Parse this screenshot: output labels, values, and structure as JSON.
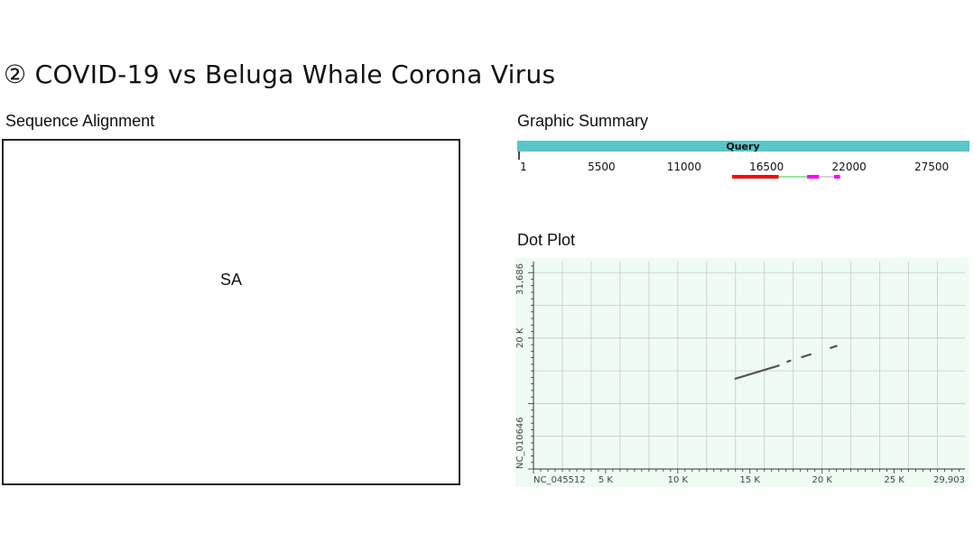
{
  "page": {
    "title": "② COVID-19 vs Beluga Whale Corona Virus"
  },
  "sequence_alignment": {
    "heading": "Sequence Alignment",
    "placeholder": "SA"
  },
  "graphic_summary": {
    "heading": "Graphic Summary",
    "bar_label": "Query",
    "bar_color": "#59c6c6",
    "ticks": [
      {
        "label": "1",
        "value": 1
      },
      {
        "label": "5500",
        "value": 5500
      },
      {
        "label": "11000",
        "value": 11000
      },
      {
        "label": "16500",
        "value": 16500
      },
      {
        "label": "22000",
        "value": 22000
      },
      {
        "label": "27500",
        "value": 27500
      }
    ],
    "axis_max": 29903,
    "hits": [
      {
        "start": 14200,
        "end": 17300,
        "color": "#ff0000",
        "weight": "thick"
      },
      {
        "start": 17300,
        "end": 18600,
        "color": "#2ecc40",
        "weight": "thin"
      },
      {
        "start": 18600,
        "end": 19200,
        "color": "#2ecc40",
        "weight": "thin"
      },
      {
        "start": 19200,
        "end": 20000,
        "color": "#ff00ff",
        "weight": "medium"
      },
      {
        "start": 20000,
        "end": 21000,
        "color": "#aaaaaa",
        "weight": "thin"
      },
      {
        "start": 21000,
        "end": 21400,
        "color": "#ff00ff",
        "weight": "medium"
      }
    ]
  },
  "dot_plot": {
    "heading": "Dot Plot",
    "x_label": "NC_045512",
    "y_label": "NC_010646",
    "x_ticks": [
      "5 K",
      "10 K",
      "15 K",
      "20 K",
      "25 K",
      "29,903"
    ],
    "y_ticks": [
      "20 K",
      "31,686"
    ],
    "x_max": 29903,
    "y_max": 31686,
    "segments": [
      {
        "x1": 14000,
        "y1": 13800,
        "x2": 17000,
        "y2": 15800
      },
      {
        "x1": 17600,
        "y1": 16400,
        "x2": 17800,
        "y2": 16550
      },
      {
        "x1": 18600,
        "y1": 17100,
        "x2": 19200,
        "y2": 17500
      },
      {
        "x1": 20600,
        "y1": 18500,
        "x2": 21000,
        "y2": 18800
      }
    ],
    "background": "#eefcf3",
    "grid_color": "#c9c9c9"
  }
}
